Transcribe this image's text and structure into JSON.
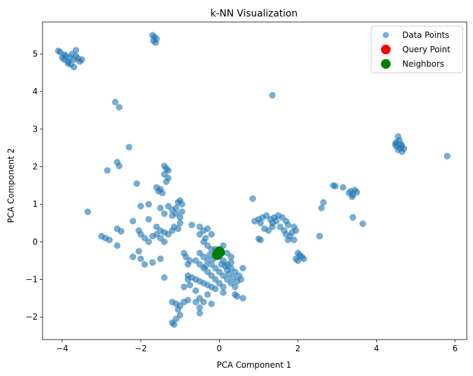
{
  "chart_data": {
    "type": "scatter",
    "title": "k-NN Visualization",
    "xlabel": "PCA Component 1",
    "ylabel": "PCA Component 2",
    "xlim": [
      -4.5,
      6.3
    ],
    "ylim": [
      -2.6,
      5.85
    ],
    "xticks": [
      -4,
      -2,
      0,
      2,
      4,
      6
    ],
    "yticks": [
      -2,
      -1,
      0,
      1,
      2,
      3,
      4,
      5
    ],
    "xtick_labels": [
      "−4",
      "−2",
      "0",
      "2",
      "4",
      "6"
    ],
    "ytick_labels": [
      "−2",
      "−1",
      "0",
      "1",
      "2",
      "3",
      "4",
      "5"
    ],
    "grid": false,
    "legend_position": "top-right",
    "series": [
      {
        "name": "Data Points",
        "color": "#1f77b4",
        "points": [
          [
            -4.1,
            5.08
          ],
          [
            -4.05,
            5.05
          ],
          [
            -4.0,
            4.9
          ],
          [
            -3.95,
            4.85
          ],
          [
            -3.9,
            4.95
          ],
          [
            -3.85,
            4.8
          ],
          [
            -3.8,
            4.9
          ],
          [
            -3.75,
            5.0
          ],
          [
            -3.7,
            4.85
          ],
          [
            -3.65,
            4.95
          ],
          [
            -3.6,
            4.88
          ],
          [
            -3.55,
            4.8
          ],
          [
            -3.7,
            4.65
          ],
          [
            -3.85,
            4.75
          ],
          [
            -3.65,
            5.1
          ],
          [
            -3.5,
            4.85
          ],
          [
            -3.95,
            4.98
          ],
          [
            -3.78,
            4.72
          ],
          [
            -1.7,
            5.5
          ],
          [
            -1.65,
            5.45
          ],
          [
            -1.6,
            5.4
          ],
          [
            -1.62,
            5.3
          ],
          [
            -1.68,
            5.35
          ],
          [
            1.35,
            3.9
          ],
          [
            -2.65,
            3.72
          ],
          [
            -2.55,
            3.58
          ],
          [
            -2.3,
            2.52
          ],
          [
            -2.6,
            2.12
          ],
          [
            -2.55,
            2.02
          ],
          [
            -2.85,
            1.9
          ],
          [
            4.5,
            2.65
          ],
          [
            4.55,
            2.8
          ],
          [
            4.6,
            2.5
          ],
          [
            4.65,
            2.4
          ],
          [
            4.5,
            2.55
          ],
          [
            4.58,
            2.7
          ],
          [
            4.62,
            2.6
          ],
          [
            4.7,
            2.48
          ],
          [
            4.55,
            2.45
          ],
          [
            4.48,
            2.6
          ],
          [
            4.65,
            2.55
          ],
          [
            5.8,
            2.28
          ],
          [
            -1.4,
            2.02
          ],
          [
            -1.35,
            1.95
          ],
          [
            -1.3,
            1.9
          ],
          [
            -1.4,
            1.8
          ],
          [
            -1.3,
            1.7
          ],
          [
            -1.35,
            1.6
          ],
          [
            -2.1,
            1.55
          ],
          [
            -1.6,
            1.45
          ],
          [
            -1.5,
            1.4
          ],
          [
            -1.55,
            1.35
          ],
          [
            -1.45,
            1.3
          ],
          [
            -2.0,
            0.95
          ],
          [
            -1.8,
            1.0
          ],
          [
            -1.5,
            0.9
          ],
          [
            -1.3,
            0.95
          ],
          [
            -1.2,
            0.85
          ],
          [
            -1.1,
            0.9
          ],
          [
            -1.05,
            1.05
          ],
          [
            -1.0,
            1.1
          ],
          [
            -0.95,
            1.0
          ],
          [
            -1.1,
            0.75
          ],
          [
            -1.2,
            0.7
          ],
          [
            -1.0,
            0.65
          ],
          [
            -0.95,
            0.8
          ],
          [
            -1.4,
            0.75
          ],
          [
            -2.2,
            0.55
          ],
          [
            -1.8,
            0.6
          ],
          [
            -1.6,
            0.4
          ],
          [
            -1.5,
            0.3
          ],
          [
            -1.4,
            0.25
          ],
          [
            -1.3,
            0.2
          ],
          [
            -1.2,
            0.3
          ],
          [
            -1.0,
            0.5
          ],
          [
            -1.15,
            0.4
          ],
          [
            -1.05,
            0.35
          ],
          [
            -2.05,
            0.3
          ],
          [
            -2.0,
            0.2
          ],
          [
            -1.9,
            0.1
          ],
          [
            -1.8,
            0.0
          ],
          [
            -1.7,
            0.15
          ],
          [
            -1.6,
            0.2
          ],
          [
            -1.5,
            0.1
          ],
          [
            -1.4,
            0.0
          ],
          [
            -2.6,
            0.35
          ],
          [
            -2.5,
            0.28
          ],
          [
            -2.6,
            -0.1
          ],
          [
            -3.0,
            0.15
          ],
          [
            -2.9,
            0.1
          ],
          [
            -2.8,
            0.05
          ],
          [
            -2.2,
            -0.4
          ],
          [
            -2.0,
            -0.45
          ],
          [
            -1.9,
            -0.6
          ],
          [
            -1.7,
            -0.55
          ],
          [
            -1.5,
            -0.45
          ],
          [
            -1.4,
            -0.95
          ],
          [
            -3.35,
            0.8
          ],
          [
            -2.05,
            -0.25
          ],
          [
            -0.7,
            0.45
          ],
          [
            -0.5,
            0.4
          ],
          [
            -0.4,
            0.3
          ],
          [
            -0.3,
            0.35
          ],
          [
            -0.2,
            0.2
          ],
          [
            -0.35,
            0.1
          ],
          [
            -0.5,
            0.2
          ],
          [
            -0.4,
            0.0
          ],
          [
            -0.3,
            -0.1
          ],
          [
            -0.2,
            -0.2
          ],
          [
            -0.1,
            -0.3
          ],
          [
            0.0,
            -0.4
          ],
          [
            0.1,
            -0.5
          ],
          [
            0.2,
            -0.6
          ],
          [
            0.3,
            -0.7
          ],
          [
            0.4,
            -0.8
          ],
          [
            0.5,
            -0.9
          ],
          [
            -0.5,
            -0.3
          ],
          [
            -0.4,
            -0.4
          ],
          [
            -0.3,
            -0.5
          ],
          [
            -0.2,
            -0.6
          ],
          [
            -0.1,
            -0.7
          ],
          [
            0.0,
            -0.8
          ],
          [
            0.1,
            -0.9
          ],
          [
            0.2,
            -1.0
          ],
          [
            0.3,
            -1.1
          ],
          [
            0.4,
            -1.2
          ],
          [
            -0.6,
            -0.5
          ],
          [
            -0.5,
            -0.6
          ],
          [
            -0.4,
            -0.7
          ],
          [
            -0.3,
            -0.8
          ],
          [
            -0.2,
            -0.9
          ],
          [
            -0.1,
            -1.0
          ],
          [
            0.0,
            -1.1
          ],
          [
            0.1,
            -1.2
          ],
          [
            0.2,
            -0.75
          ],
          [
            0.3,
            -0.55
          ],
          [
            -0.8,
            -0.9
          ],
          [
            -0.7,
            -0.95
          ],
          [
            -0.6,
            -1.0
          ],
          [
            -0.5,
            -1.05
          ],
          [
            -0.4,
            -1.1
          ],
          [
            -0.3,
            -1.15
          ],
          [
            -0.2,
            -1.2
          ],
          [
            -0.1,
            -1.25
          ],
          [
            -0.1,
            -0.2
          ],
          [
            0.1,
            -0.1
          ],
          [
            0.2,
            -0.3
          ],
          [
            0.3,
            -0.4
          ],
          [
            -0.15,
            -0.45
          ],
          [
            0.05,
            -0.6
          ],
          [
            -0.25,
            -0.35
          ],
          [
            0.25,
            -0.85
          ],
          [
            -0.35,
            -0.65
          ],
          [
            -0.9,
            -0.3
          ],
          [
            -0.85,
            -0.4
          ],
          [
            -0.75,
            -0.5
          ],
          [
            -0.8,
            -0.6
          ],
          [
            0.6,
            -0.7
          ],
          [
            0.55,
            -1.0
          ],
          [
            0.45,
            -1.05
          ],
          [
            0.6,
            -1.5
          ],
          [
            0.4,
            -1.4
          ],
          [
            0.45,
            -1.45
          ],
          [
            -1.2,
            -1.6
          ],
          [
            -1.1,
            -1.65
          ],
          [
            -1.0,
            -1.7
          ],
          [
            -0.9,
            -1.6
          ],
          [
            -0.8,
            -1.55
          ],
          [
            -1.05,
            -1.8
          ],
          [
            -1.0,
            -1.95
          ],
          [
            -1.1,
            -2.05
          ],
          [
            -1.2,
            -2.15
          ],
          [
            -1.15,
            -2.2
          ],
          [
            -0.9,
            -1.2
          ],
          [
            -0.6,
            -1.3
          ],
          [
            -0.5,
            -1.5
          ],
          [
            -0.4,
            -1.6
          ],
          [
            -0.3,
            -1.4
          ],
          [
            -0.6,
            -1.6
          ],
          [
            -0.5,
            -1.75
          ],
          [
            -0.2,
            -1.65
          ],
          [
            -0.5,
            -1.9
          ],
          [
            -0.8,
            -1.0
          ],
          [
            -0.75,
            -1.15
          ],
          [
            0.1,
            -1.35
          ],
          [
            0.15,
            -0.65
          ],
          [
            0.35,
            -0.95
          ],
          [
            1.0,
            0.6
          ],
          [
            1.1,
            0.65
          ],
          [
            1.2,
            0.7
          ],
          [
            1.3,
            0.6
          ],
          [
            1.35,
            0.5
          ],
          [
            1.4,
            0.65
          ],
          [
            1.5,
            0.7
          ],
          [
            1.6,
            0.65
          ],
          [
            1.7,
            0.55
          ],
          [
            1.75,
            0.45
          ],
          [
            0.9,
            0.55
          ],
          [
            1.05,
            0.5
          ],
          [
            1.15,
            0.35
          ],
          [
            1.25,
            0.3
          ],
          [
            1.35,
            0.4
          ],
          [
            1.45,
            0.55
          ],
          [
            1.55,
            0.4
          ],
          [
            1.65,
            0.3
          ],
          [
            0.85,
            1.15
          ],
          [
            1.0,
            0.08
          ],
          [
            1.05,
            0.05
          ],
          [
            1.7,
            0.2
          ],
          [
            1.8,
            0.15
          ],
          [
            1.85,
            0.25
          ],
          [
            1.9,
            0.05
          ],
          [
            1.75,
            0.05
          ],
          [
            1.95,
            0.3
          ],
          [
            2.0,
            -0.3
          ],
          [
            2.05,
            -0.35
          ],
          [
            2.1,
            -0.4
          ],
          [
            2.0,
            -0.5
          ],
          [
            1.95,
            -0.45
          ],
          [
            2.15,
            -0.45
          ],
          [
            1.9,
            0.4
          ],
          [
            2.55,
            0.15
          ],
          [
            2.6,
            0.9
          ],
          [
            2.65,
            1.05
          ],
          [
            2.9,
            1.5
          ],
          [
            2.95,
            1.48
          ],
          [
            3.15,
            1.45
          ],
          [
            3.3,
            1.3
          ],
          [
            3.35,
            1.35
          ],
          [
            3.4,
            1.25
          ],
          [
            3.45,
            1.38
          ],
          [
            3.5,
            1.32
          ],
          [
            3.38,
            1.2
          ],
          [
            3.4,
            0.65
          ],
          [
            3.65,
            0.48
          ]
        ]
      },
      {
        "name": "Query Point",
        "color": "#ff0000",
        "points": [
          [
            -0.02,
            -0.3
          ]
        ]
      },
      {
        "name": "Neighbors",
        "color": "#008000",
        "points": [
          [
            -0.03,
            -0.32
          ],
          [
            0.02,
            -0.28
          ],
          [
            -0.06,
            -0.35
          ],
          [
            0.0,
            -0.25
          ],
          [
            -0.04,
            -0.3
          ]
        ]
      }
    ]
  }
}
